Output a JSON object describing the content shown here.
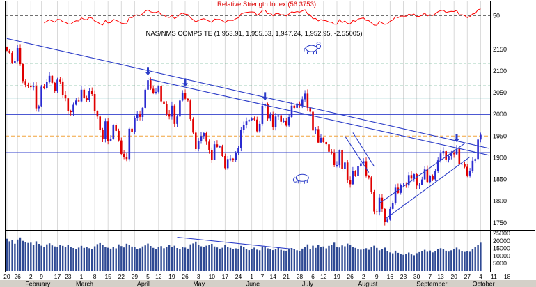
{
  "colors": {
    "up": "#2a2ad0",
    "down": "#e00000",
    "volume": "#2f4a94",
    "rsi": "#ff0000",
    "grid": "#d9d9d9",
    "trend": "#2b3cc8",
    "arrow": "#2b3cc8",
    "axis_text": "#000000",
    "month_band": "#d4d0c8"
  },
  "chart_data": {
    "type": "candlestick",
    "price_title": "NAS/NMS COMPSITE (1,953.91, 1,955.53, 1,947.24, 1,952.95, -2.55005)",
    "indicator_title": "Relative Strength Index (56.3753)",
    "indicator": {
      "name": "Relative Strength Index",
      "period": 14,
      "level_line": 50,
      "level_label": "50",
      "last_value": 56.3753
    },
    "price_axis_ticks": [
      2150,
      2100,
      2050,
      2000,
      1950,
      1900,
      1850,
      1800,
      1750
    ],
    "volume_axis_ticks": [
      25000,
      20000,
      15000,
      10000,
      5000
    ],
    "ylim_price": [
      1740,
      2190
    ],
    "ylim_volume": [
      0,
      26000
    ],
    "ylim_rsi": [
      25,
      80
    ],
    "total_slots": 192,
    "closes": [
      2147,
      2142,
      2119,
      2124,
      2153,
      2116,
      2077,
      2068,
      2066,
      2063,
      2066,
      2014,
      2019,
      2064,
      2060,
      2075,
      2089,
      2073,
      2054,
      2080,
      2076,
      2045,
      2037,
      2007,
      2005,
      2022,
      2032,
      2030,
      2057,
      2039,
      2033,
      2055,
      2047,
      2008,
      1995,
      1964,
      1943,
      1984,
      1939,
      1943,
      1976,
      1962,
      1940,
      1909,
      1901,
      1897,
      1967,
      1960,
      1992,
      2000,
      1994,
      2015,
      2057,
      2079,
      2059,
      2050,
      2052,
      2065,
      2030,
      2024,
      2002,
      1995,
      2020,
      1978,
      1995,
      2032,
      2049,
      2036,
      2032,
      1989,
      1958,
      1920,
      1938,
      1950,
      1957,
      1937,
      1917,
      1896,
      1931,
      1925,
      1926,
      1904,
      1876,
      1897,
      1898,
      1896,
      1912,
      1922,
      1964,
      1976,
      1984,
      1987,
      1990,
      1988,
      1961,
      1978,
      2020,
      2023,
      1990,
      1999,
      1970,
      1995,
      1998,
      1983,
      1986,
      1974,
      1994,
      2020,
      2015,
      2025,
      2020,
      2035,
      2048,
      2015,
      2006,
      1963,
      1966,
      1935,
      1946,
      1936,
      1931,
      1914,
      1912,
      1883,
      1883,
      1917,
      1874,
      1889,
      1849,
      1839,
      1869,
      1858,
      1881,
      1887,
      1892,
      1859,
      1855,
      1821,
      1776,
      1774,
      1808,
      1782,
      1752,
      1757,
      1782,
      1795,
      1831,
      1819,
      1838,
      1838,
      1836,
      1860,
      1852,
      1862,
      1836,
      1838,
      1850,
      1873,
      1844,
      1858,
      1850,
      1869,
      1894,
      1910,
      1915,
      1896,
      1904,
      1910,
      1908,
      1921,
      1885,
      1886,
      1879,
      1859,
      1869,
      1893,
      1897,
      1942,
      1952.95
    ],
    "volumes": [
      21500,
      19800,
      20500,
      18200,
      21000,
      22400,
      20100,
      19300,
      18700,
      18900,
      17500,
      19800,
      18100,
      16900,
      16200,
      17800,
      18500,
      17100,
      16400,
      15800,
      17200,
      16800,
      15900,
      17400,
      16100,
      15300,
      14800,
      15600,
      16800,
      15400,
      16100,
      15200,
      14700,
      16500,
      17900,
      18600,
      17300,
      16000,
      15500,
      14900,
      16200,
      15100,
      17800,
      16600,
      15700,
      18200,
      17500,
      16300,
      15800,
      14600,
      15200,
      16400,
      17100,
      18300,
      16700,
      15400,
      14800,
      15900,
      16600,
      15200,
      16100,
      17400,
      15800,
      16900,
      15300,
      14700,
      16200,
      15600,
      14900,
      17800,
      18400,
      19600,
      17200,
      16500,
      15800,
      16900,
      17600,
      18100,
      16400,
      15700,
      14900,
      15500,
      17300,
      16200,
      15400,
      14800,
      15100,
      14500,
      16800,
      15900,
      14700,
      13900,
      14800,
      15600,
      14200,
      13800,
      16400,
      15900,
      15100,
      14600,
      13900,
      14400,
      15800,
      14100,
      13600,
      13200,
      14700,
      15300,
      14500,
      13800,
      13400,
      14900,
      16200,
      17800,
      14600,
      16900,
      15400,
      17200,
      15800,
      16400,
      15100,
      16800,
      17500,
      18900,
      16200,
      15700,
      17100,
      16500,
      18300,
      17600,
      16100,
      15400,
      14800,
      14200,
      14600,
      15200,
      14100,
      15800,
      16900,
      15400,
      13800,
      14500,
      15600,
      13200,
      12400,
      11800,
      13500,
      12100,
      11400,
      10800,
      11600,
      12300,
      11100,
      10500,
      11900,
      12600,
      13400,
      14100,
      12800,
      13600,
      12400,
      13100,
      14500,
      15200,
      14700,
      13500,
      12900,
      13800,
      14400,
      15600,
      14200,
      13100,
      12700,
      13400,
      12800,
      14600,
      15800,
      17400,
      18900
    ],
    "x_ticks": [
      [
        0,
        "20"
      ],
      [
        4,
        "26"
      ],
      [
        9,
        "2"
      ],
      [
        13,
        "9"
      ],
      [
        19,
        "17"
      ],
      [
        23,
        "23"
      ],
      [
        28,
        "1"
      ],
      [
        33,
        "8"
      ],
      [
        38,
        "15"
      ],
      [
        43,
        "22"
      ],
      [
        48,
        "29"
      ],
      [
        53,
        "5"
      ],
      [
        57,
        "12"
      ],
      [
        62,
        "19"
      ],
      [
        67,
        "26"
      ],
      [
        72,
        "3"
      ],
      [
        77,
        "10"
      ],
      [
        82,
        "17"
      ],
      [
        87,
        "24"
      ],
      [
        92,
        "1"
      ],
      [
        96,
        "7"
      ],
      [
        100,
        "14"
      ],
      [
        105,
        "21"
      ],
      [
        110,
        "28"
      ],
      [
        115,
        "6"
      ],
      [
        119,
        "12"
      ],
      [
        124,
        "19"
      ],
      [
        129,
        "26"
      ],
      [
        134,
        "2"
      ],
      [
        139,
        "9"
      ],
      [
        144,
        "16"
      ],
      [
        149,
        "23"
      ],
      [
        154,
        "30"
      ],
      [
        159,
        "7"
      ],
      [
        163,
        "13"
      ],
      [
        168,
        "20"
      ],
      [
        173,
        "27"
      ],
      [
        178,
        "4"
      ],
      [
        183,
        "11"
      ],
      [
        188,
        "18"
      ]
    ],
    "months": [
      [
        "February",
        9
      ],
      [
        "March",
        28
      ],
      [
        "April",
        51
      ],
      [
        "May",
        72
      ],
      [
        "June",
        92
      ],
      [
        "July",
        113
      ],
      [
        "August",
        134
      ],
      [
        "September",
        156
      ],
      [
        "October",
        177
      ]
    ],
    "levels": [
      {
        "value": 2118,
        "color": "#3d9970",
        "dash": "4 3",
        "width": 1
      },
      {
        "value": 2066,
        "color": "#3d9970",
        "dash": "4 3",
        "width": 1
      },
      {
        "value": 2038,
        "color": "#1f8f8f",
        "dash": "",
        "width": 1
      },
      {
        "value": 2000,
        "color": "#3340cc",
        "dash": "",
        "width": 1.4
      },
      {
        "value": 1950,
        "color": "#f2a33c",
        "dash": "5 3",
        "width": 1
      },
      {
        "value": 1912,
        "color": "#3340cc",
        "dash": "",
        "width": 1
      }
    ],
    "trendlines": [
      {
        "name": "major-downtrend",
        "pane": "price",
        "x1": 0,
        "p1": 2175,
        "x2": 181,
        "p2": 1922
      },
      {
        "name": "secondary-downtrend",
        "pane": "price",
        "x1": 53,
        "p1": 2082,
        "x2": 181,
        "p2": 1906
      },
      {
        "name": "july-channel-a",
        "pane": "price",
        "x1": 127,
        "p1": 1950,
        "x2": 136,
        "p2": 1866
      },
      {
        "name": "july-channel-b",
        "pane": "price",
        "x1": 130,
        "p1": 1958,
        "x2": 138,
        "p2": 1880
      },
      {
        "name": "august-channel-upper",
        "pane": "price",
        "x1": 140,
        "p1": 1795,
        "x2": 172,
        "p2": 1933
      },
      {
        "name": "august-channel-lower",
        "pane": "price",
        "x1": 142,
        "p1": 1758,
        "x2": 174,
        "p2": 1902
      },
      {
        "name": "volume-downtrend",
        "pane": "volume",
        "x1": 64,
        "p1": 22500,
        "x2": 108,
        "p2": 14500
      }
    ],
    "arrows": [
      {
        "bar": 53,
        "dir": "down"
      },
      {
        "bar": 67,
        "dir": "down"
      },
      {
        "bar": 97,
        "dir": "down"
      },
      {
        "bar": 169,
        "dir": "down"
      }
    ],
    "sketches": [
      {
        "type": "bull",
        "bar": 115,
        "price": 2152
      },
      {
        "type": "bear",
        "bar": 111,
        "price": 1852
      }
    ]
  }
}
